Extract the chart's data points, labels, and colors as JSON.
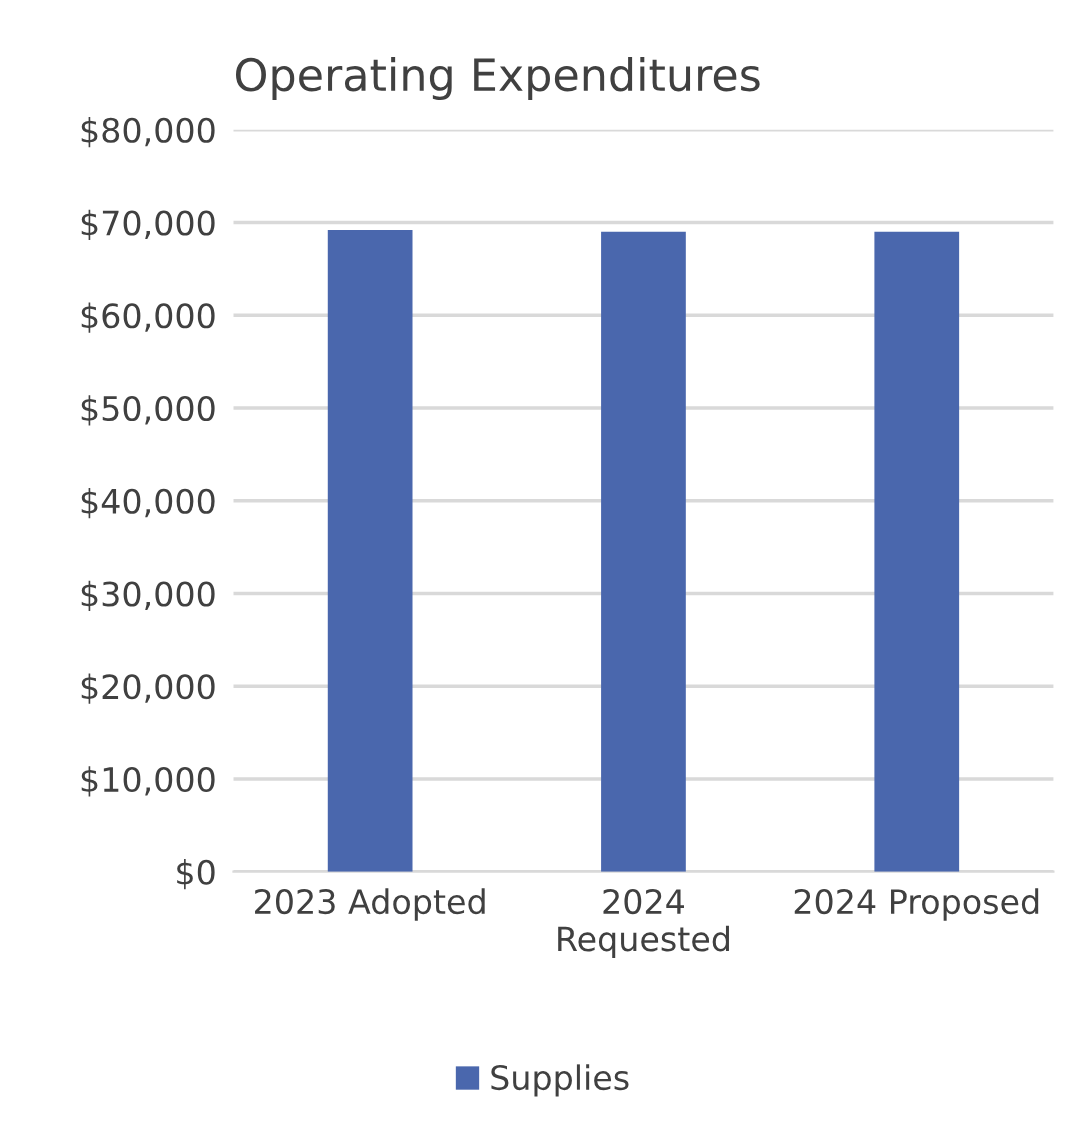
{
  "chart_data": {
    "type": "bar",
    "title": "Operating Expenditures",
    "categories": [
      "2023 Adopted",
      "2024 Requested",
      "2024 Proposed"
    ],
    "series": [
      {
        "name": "Supplies",
        "color": "#4a67ad",
        "values": [
          69200,
          69000,
          69000
        ]
      }
    ],
    "ylim": [
      0,
      80000
    ],
    "yticks": [
      {
        "value": 0,
        "label": "$0"
      },
      {
        "value": 10000,
        "label": "$10,000"
      },
      {
        "value": 20000,
        "label": "$20,000"
      },
      {
        "value": 30000,
        "label": "$30,000"
      },
      {
        "value": 40000,
        "label": "$40,000"
      },
      {
        "value": 50000,
        "label": "$50,000"
      },
      {
        "value": 60000,
        "label": "$60,000"
      },
      {
        "value": 70000,
        "label": "$70,000"
      },
      {
        "value": 80000,
        "label": "$80,000"
      }
    ],
    "grid": "y",
    "legend": "bottom"
  }
}
